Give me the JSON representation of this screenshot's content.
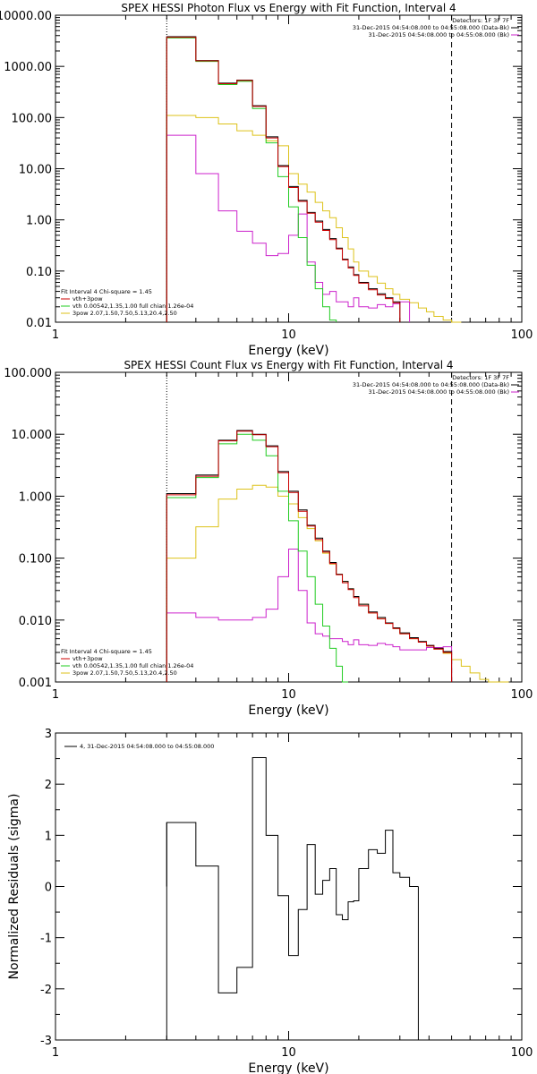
{
  "colors": {
    "black": "#000000",
    "red": "#cc0000",
    "green": "#22cc22",
    "magenta": "#cc22cc",
    "yellow": "#ddc21a"
  },
  "chart_data": [
    {
      "type": "line",
      "title": "SPEX HESSI Photon Flux vs Energy with Fit Function, Interval 4",
      "xlabel": "Energy (keV)",
      "ylabel": "",
      "xscale": "log",
      "yscale": "log",
      "xlim": [
        1,
        100
      ],
      "ylim": [
        0.01,
        10000
      ],
      "x_ticks": [
        "1",
        "10",
        "100"
      ],
      "y_ticks": [
        "0.01",
        "0.10",
        "1.00",
        "10.00",
        "100.00",
        "1000.00",
        "10000.00"
      ],
      "legend_top": [
        "Detectors: 1F 3F 7F",
        "31-Dec-2015 04:54:08.000 to 04:55:08.000 (Data-Bk)",
        "31-Dec-2015 04:54:08.000 to 04:55:08.000 (Bk)"
      ],
      "legend_bottom": [
        "Fit Interval 4   Chi-square = 1.45",
        "vth+3pow",
        "vth 0.00542,1.35,1.00  full chian 1.26e-04",
        "3pow 2.07,1.50,7.50,5.13,20.4,2.50"
      ],
      "edges": [
        3,
        4,
        5,
        6,
        7,
        8,
        9,
        10,
        11,
        12,
        13,
        14,
        15,
        16,
        17,
        18,
        19,
        20,
        22,
        24,
        26,
        28,
        30,
        33,
        36,
        39,
        42,
        46,
        50,
        55,
        60,
        66,
        72
      ],
      "energy_range": [
        3,
        50
      ],
      "series": [
        {
          "name": "Data-Bk",
          "color": "#000000",
          "values": [
            3800,
            1300,
            470,
            540,
            170,
            42,
            11.5,
            4.5,
            2.4,
            1.4,
            0.95,
            0.65,
            0.43,
            0.28,
            0.17,
            0.12,
            0.085,
            0.06,
            0.045,
            0.036,
            0.03,
            0.025
          ]
        },
        {
          "name": "vth+3pow",
          "color": "#cc0000",
          "values": [
            3700,
            1280,
            460,
            530,
            165,
            40,
            11,
            4.3,
            2.3,
            1.35,
            0.9,
            0.62,
            0.41,
            0.27,
            0.165,
            0.115,
            0.082,
            0.058,
            0.043,
            0.034,
            0.029,
            0.024
          ]
        },
        {
          "name": "vth",
          "color": "#22cc22",
          "values": [
            3600,
            1250,
            440,
            510,
            150,
            32,
            7,
            1.8,
            0.45,
            0.13,
            0.045,
            0.02,
            0.011
          ]
        },
        {
          "name": "3pow",
          "color": "#ddc21a",
          "values": [
            110,
            100,
            75,
            55,
            45,
            35,
            28,
            8,
            5,
            3.5,
            2.2,
            1.5,
            1.1,
            0.7,
            0.45,
            0.27,
            0.15,
            0.1,
            0.078,
            0.058,
            0.045,
            0.035,
            0.028,
            0.024,
            0.019,
            0.016,
            0.013,
            0.011,
            0.009
          ]
        },
        {
          "name": "Bk",
          "color": "#cc22cc",
          "values": [
            45,
            8,
            1.5,
            0.6,
            0.35,
            0.2,
            0.22,
            0.5,
            1.3,
            0.15,
            0.06,
            0.035,
            0.04,
            0.025,
            0.025,
            0.02,
            0.03,
            0.02,
            0.019,
            0.022,
            0.02,
            0.023,
            0.025
          ]
        }
      ]
    },
    {
      "type": "line",
      "title": "SPEX HESSI Count Flux vs Energy with Fit Function, Interval 4",
      "xlabel": "Energy (keV)",
      "ylabel": "",
      "xscale": "log",
      "yscale": "log",
      "xlim": [
        1,
        100
      ],
      "ylim": [
        0.001,
        100
      ],
      "x_ticks": [
        "1",
        "10",
        "100"
      ],
      "y_ticks": [
        "0.001",
        "0.010",
        "0.100",
        "1.000",
        "10.000",
        "100.000"
      ],
      "legend_top": [
        "Detectors: 1F 3F 7F",
        "31-Dec-2015 04:54:08.000 to 04:55:08.000 (Data-Bk)",
        "31-Dec-2015 04:54:08.000 to 04:55:08.000 (Bk)"
      ],
      "legend_bottom": [
        "Fit Interval 4   Chi-square = 1.45",
        "vth+3pow",
        "vth 0.00542,1.35,1.00  full chian 1.26e-04",
        "3pow 2.07,1.50,7.50,5.13,20.4,2.50"
      ],
      "edges": [
        3,
        4,
        5,
        6,
        7,
        8,
        9,
        10,
        11,
        12,
        13,
        14,
        15,
        16,
        17,
        18,
        19,
        20,
        22,
        24,
        26,
        28,
        30,
        33,
        36,
        39,
        42,
        46,
        50,
        55,
        60,
        66,
        72,
        80,
        88
      ],
      "energy_range": [
        3,
        50
      ],
      "series": [
        {
          "name": "Data-Bk",
          "color": "#000000",
          "values": [
            1.1,
            2.2,
            8.0,
            11.5,
            10.0,
            6.5,
            2.5,
            1.2,
            0.6,
            0.34,
            0.21,
            0.13,
            0.085,
            0.055,
            0.042,
            0.032,
            0.024,
            0.018,
            0.0135,
            0.011,
            0.009,
            0.0075,
            0.0062,
            0.0052,
            0.0045,
            0.0039,
            0.0035,
            0.0031
          ]
        },
        {
          "name": "vth+3pow",
          "color": "#cc0000",
          "values": [
            1.05,
            2.1,
            7.8,
            11.2,
            9.8,
            6.3,
            2.4,
            1.15,
            0.57,
            0.33,
            0.2,
            0.125,
            0.082,
            0.054,
            0.04,
            0.031,
            0.023,
            0.017,
            0.013,
            0.0105,
            0.0088,
            0.0073,
            0.006,
            0.005,
            0.0044,
            0.0038,
            0.0034,
            0.003
          ]
        },
        {
          "name": "vth",
          "color": "#22cc22",
          "values": [
            0.95,
            2.0,
            7.0,
            10.0,
            8.0,
            4.5,
            1.2,
            0.4,
            0.13,
            0.05,
            0.018,
            0.008,
            0.0035,
            0.0018,
            0.001
          ]
        },
        {
          "name": "3pow",
          "color": "#ddc21a",
          "values": [
            0.1,
            0.32,
            0.9,
            1.3,
            1.5,
            1.4,
            1.0,
            0.75,
            0.45,
            0.3,
            0.19,
            0.12,
            0.08,
            0.055,
            0.042,
            0.032,
            0.024,
            0.018,
            0.013,
            0.0105,
            0.0088,
            0.0073,
            0.006,
            0.005,
            0.0044,
            0.0038,
            0.0034,
            0.0029,
            0.0023,
            0.0018,
            0.0014,
            0.0011,
            0.0009,
            0.0007
          ]
        },
        {
          "name": "Bk",
          "color": "#cc22cc",
          "values": [
            0.013,
            0.011,
            0.01,
            0.01,
            0.011,
            0.015,
            0.05,
            0.14,
            0.03,
            0.009,
            0.006,
            0.0055,
            0.005,
            0.005,
            0.0045,
            0.004,
            0.0048,
            0.004,
            0.0039,
            0.0042,
            0.004,
            0.0037,
            0.0033,
            0.0033,
            0.0033,
            0.0036,
            0.0036,
            0.0037
          ]
        }
      ]
    },
    {
      "type": "line",
      "title": "",
      "xlabel": "Energy (keV)",
      "ylabel": "Normalized Residuals (sigma)",
      "xscale": "log",
      "yscale": "linear",
      "xlim": [
        1,
        100
      ],
      "ylim": [
        -3,
        3
      ],
      "x_ticks": [
        "1",
        "10",
        "100"
      ],
      "y_ticks": [
        "-3",
        "-2",
        "-1",
        "0",
        "1",
        "2",
        "3"
      ],
      "legend_top": [
        "4, 31-Dec-2015 04:54:08.000 to 04:55:08.000"
      ],
      "edges": [
        3,
        4,
        5,
        6,
        7,
        8,
        9,
        10,
        11,
        12,
        13,
        14,
        15,
        16,
        17,
        18,
        19,
        20,
        22,
        24,
        26,
        28,
        30,
        33,
        36,
        39,
        42,
        46,
        50
      ],
      "series": [
        {
          "name": "4, 31-Dec-2015 04:54:08.000 to 04:55:08.000",
          "color": "#000000",
          "values": [
            1.25,
            0.4,
            -2.08,
            -1.58,
            2.52,
            1.0,
            -0.18,
            -1.35,
            -0.45,
            0.82,
            -0.15,
            0.12,
            0.35,
            -0.55,
            -0.65,
            -0.3,
            -0.28,
            0.35,
            0.72,
            0.65,
            1.1,
            0.27,
            0.18,
            0.0
          ]
        }
      ]
    }
  ]
}
